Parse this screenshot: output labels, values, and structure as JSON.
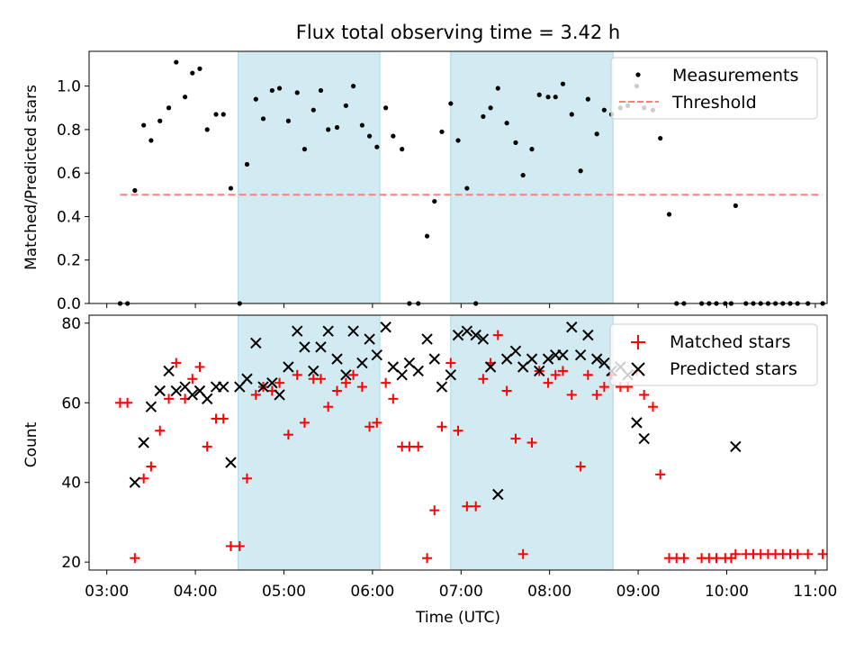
{
  "chart_data": [
    {
      "type": "scatter",
      "title": "Flux total observing time = 3.42 h",
      "xlabel": "",
      "ylabel": "Matched/Predicted stars",
      "ylim": [
        0,
        1.16
      ],
      "xlim": [
        "02:48",
        "11:08"
      ],
      "yticks": [
        "0.0",
        "0.2",
        "0.4",
        "0.6",
        "0.8",
        "1.0"
      ],
      "grid": false,
      "legend_position": "top-right",
      "shaded_intervals": [
        [
          "04:29",
          "06:05"
        ],
        [
          "06:53",
          "08:43"
        ]
      ],
      "shade_color": "#add8e6",
      "series": [
        {
          "name": "Measurements",
          "marker": "dot",
          "color": "#000000",
          "points": [
            [
              "03:09",
              0.0
            ],
            [
              "03:14",
              0.0
            ],
            [
              "03:19",
              0.52
            ],
            [
              "03:25",
              0.82
            ],
            [
              "03:30",
              0.75
            ],
            [
              "03:36",
              0.84
            ],
            [
              "03:42",
              0.9
            ],
            [
              "03:47",
              1.11
            ],
            [
              "03:53",
              0.95
            ],
            [
              "03:58",
              1.06
            ],
            [
              "04:03",
              1.08
            ],
            [
              "04:08",
              0.8
            ],
            [
              "04:14",
              0.87
            ],
            [
              "04:19",
              0.87
            ],
            [
              "04:24",
              0.53
            ],
            [
              "04:30",
              0.0
            ],
            [
              "04:35",
              0.64
            ],
            [
              "04:41",
              0.94
            ],
            [
              "04:46",
              0.85
            ],
            [
              "04:52",
              0.98
            ],
            [
              "04:57",
              0.99
            ],
            [
              "05:03",
              0.84
            ],
            [
              "05:09",
              0.97
            ],
            [
              "05:14",
              0.71
            ],
            [
              "05:20",
              0.89
            ],
            [
              "05:25",
              0.98
            ],
            [
              "05:30",
              0.8
            ],
            [
              "05:36",
              0.81
            ],
            [
              "05:42",
              0.91
            ],
            [
              "05:47",
              1.0
            ],
            [
              "05:53",
              0.82
            ],
            [
              "05:58",
              0.77
            ],
            [
              "06:03",
              0.72
            ],
            [
              "06:09",
              0.9
            ],
            [
              "06:14",
              0.77
            ],
            [
              "06:20",
              0.71
            ],
            [
              "06:25",
              0.0
            ],
            [
              "06:31",
              0.0
            ],
            [
              "06:37",
              0.31
            ],
            [
              "06:42",
              0.47
            ],
            [
              "06:47",
              0.79
            ],
            [
              "06:53",
              0.92
            ],
            [
              "06:58",
              0.75
            ],
            [
              "07:04",
              0.53
            ],
            [
              "07:10",
              0.0
            ],
            [
              "07:15",
              0.86
            ],
            [
              "07:20",
              0.9
            ],
            [
              "07:25",
              0.99
            ],
            [
              "07:31",
              0.83
            ],
            [
              "07:37",
              0.74
            ],
            [
              "07:42",
              0.59
            ],
            [
              "07:48",
              0.71
            ],
            [
              "07:53",
              0.96
            ],
            [
              "07:59",
              0.95
            ],
            [
              "08:04",
              0.95
            ],
            [
              "08:09",
              1.01
            ],
            [
              "08:15",
              0.87
            ],
            [
              "08:21",
              0.61
            ],
            [
              "08:26",
              0.94
            ],
            [
              "08:32",
              0.78
            ],
            [
              "08:37",
              0.89
            ],
            [
              "08:42",
              0.87
            ],
            [
              "08:48",
              0.9
            ],
            [
              "08:53",
              0.91
            ],
            [
              "08:59",
              1.0
            ],
            [
              "09:04",
              0.9
            ],
            [
              "09:10",
              0.89
            ],
            [
              "09:15",
              0.76
            ],
            [
              "09:21",
              0.41
            ],
            [
              "09:26",
              0.0
            ],
            [
              "09:31",
              0.0
            ],
            [
              "09:43",
              0.0
            ],
            [
              "09:48",
              0.0
            ],
            [
              "09:53",
              0.0
            ],
            [
              "09:59",
              0.0
            ],
            [
              "10:03",
              0.0
            ],
            [
              "10:06",
              0.45
            ],
            [
              "10:13",
              0.0
            ],
            [
              "10:18",
              0.0
            ],
            [
              "10:23",
              0.0
            ],
            [
              "10:28",
              0.0
            ],
            [
              "10:33",
              0.0
            ],
            [
              "10:38",
              0.0
            ],
            [
              "10:43",
              0.0
            ],
            [
              "10:48",
              0.0
            ],
            [
              "10:55",
              0.0
            ],
            [
              "11:05",
              0.0
            ]
          ]
        },
        {
          "name": "Threshold",
          "marker": "dashed-line",
          "color": "#ff7f7f",
          "points": [
            [
              "03:09",
              0.5
            ],
            [
              "11:05",
              0.5
            ]
          ]
        }
      ]
    },
    {
      "type": "scatter",
      "title": "",
      "xlabel": "Time (UTC)",
      "ylabel": "Count",
      "ylim": [
        18,
        82
      ],
      "xlim": [
        "02:48",
        "11:08"
      ],
      "yticks": [
        "20",
        "40",
        "60",
        "80"
      ],
      "xticks": [
        "03:00",
        "04:00",
        "05:00",
        "06:00",
        "07:00",
        "08:00",
        "09:00",
        "10:00",
        "11:00"
      ],
      "grid": false,
      "legend_position": "top-right",
      "shaded_intervals": [
        [
          "04:29",
          "06:05"
        ],
        [
          "06:53",
          "08:43"
        ]
      ],
      "shade_color": "#add8e6",
      "series": [
        {
          "name": "Matched stars",
          "marker": "plus",
          "color": "#ff0000",
          "points": [
            [
              "03:09",
              60
            ],
            [
              "03:14",
              60
            ],
            [
              "03:19",
              21
            ],
            [
              "03:25",
              41
            ],
            [
              "03:30",
              44
            ],
            [
              "03:36",
              53
            ],
            [
              "03:42",
              61
            ],
            [
              "03:47",
              70
            ],
            [
              "03:53",
              61
            ],
            [
              "03:58",
              66
            ],
            [
              "04:03",
              69
            ],
            [
              "04:08",
              49
            ],
            [
              "04:14",
              56
            ],
            [
              "04:19",
              56
            ],
            [
              "04:24",
              24
            ],
            [
              "04:30",
              24
            ],
            [
              "04:35",
              41
            ],
            [
              "04:41",
              62
            ],
            [
              "04:46",
              64
            ],
            [
              "04:52",
              63
            ],
            [
              "04:57",
              65
            ],
            [
              "05:03",
              52
            ],
            [
              "05:09",
              67
            ],
            [
              "05:14",
              55
            ],
            [
              "05:20",
              66
            ],
            [
              "05:25",
              66
            ],
            [
              "05:30",
              59
            ],
            [
              "05:36",
              63
            ],
            [
              "05:42",
              65
            ],
            [
              "05:47",
              67
            ],
            [
              "05:53",
              64
            ],
            [
              "05:58",
              54
            ],
            [
              "06:03",
              55
            ],
            [
              "06:09",
              65
            ],
            [
              "06:14",
              61
            ],
            [
              "06:20",
              49
            ],
            [
              "06:25",
              49
            ],
            [
              "06:31",
              49
            ],
            [
              "06:37",
              21
            ],
            [
              "06:42",
              33
            ],
            [
              "06:47",
              54
            ],
            [
              "06:53",
              70
            ],
            [
              "06:58",
              53
            ],
            [
              "07:04",
              34
            ],
            [
              "07:10",
              34
            ],
            [
              "07:15",
              66
            ],
            [
              "07:20",
              70
            ],
            [
              "07:25",
              77
            ],
            [
              "07:31",
              63
            ],
            [
              "07:37",
              51
            ],
            [
              "07:42",
              22
            ],
            [
              "07:48",
              50
            ],
            [
              "07:53",
              68
            ],
            [
              "07:59",
              65
            ],
            [
              "08:04",
              67
            ],
            [
              "08:09",
              68
            ],
            [
              "08:15",
              62
            ],
            [
              "08:21",
              44
            ],
            [
              "08:26",
              67
            ],
            [
              "08:32",
              62
            ],
            [
              "08:37",
              64
            ],
            [
              "08:42",
              67
            ],
            [
              "08:48",
              64
            ],
            [
              "08:53",
              64
            ],
            [
              "08:59",
              68
            ],
            [
              "09:04",
              62
            ],
            [
              "09:10",
              59
            ],
            [
              "09:15",
              42
            ],
            [
              "09:21",
              21
            ],
            [
              "09:26",
              21
            ],
            [
              "09:31",
              21
            ],
            [
              "09:43",
              21
            ],
            [
              "09:48",
              21
            ],
            [
              "09:53",
              21
            ],
            [
              "09:59",
              21
            ],
            [
              "10:03",
              21
            ],
            [
              "10:06",
              22
            ],
            [
              "10:13",
              22
            ],
            [
              "10:18",
              22
            ],
            [
              "10:23",
              22
            ],
            [
              "10:28",
              22
            ],
            [
              "10:33",
              22
            ],
            [
              "10:38",
              22
            ],
            [
              "10:43",
              22
            ],
            [
              "10:48",
              22
            ],
            [
              "10:55",
              22
            ],
            [
              "11:05",
              22
            ]
          ]
        },
        {
          "name": "Predicted stars",
          "marker": "x",
          "color": "#000000",
          "points": [
            [
              "03:19",
              40
            ],
            [
              "03:25",
              50
            ],
            [
              "03:30",
              59
            ],
            [
              "03:36",
              63
            ],
            [
              "03:42",
              68
            ],
            [
              "03:47",
              63
            ],
            [
              "03:53",
              64
            ],
            [
              "03:58",
              62
            ],
            [
              "04:03",
              63
            ],
            [
              "04:08",
              61
            ],
            [
              "04:14",
              64
            ],
            [
              "04:19",
              64
            ],
            [
              "04:24",
              45
            ],
            [
              "04:30",
              64
            ],
            [
              "04:35",
              66
            ],
            [
              "04:41",
              75
            ],
            [
              "04:46",
              64
            ],
            [
              "04:52",
              65
            ],
            [
              "04:57",
              62
            ],
            [
              "05:03",
              69
            ],
            [
              "05:09",
              78
            ],
            [
              "05:14",
              74
            ],
            [
              "05:20",
              68
            ],
            [
              "05:25",
              74
            ],
            [
              "05:30",
              78
            ],
            [
              "05:36",
              71
            ],
            [
              "05:42",
              67
            ],
            [
              "05:47",
              78
            ],
            [
              "05:53",
              70
            ],
            [
              "05:58",
              76
            ],
            [
              "06:03",
              72
            ],
            [
              "06:09",
              79
            ],
            [
              "06:14",
              69
            ],
            [
              "06:20",
              67
            ],
            [
              "06:25",
              70
            ],
            [
              "06:31",
              68
            ],
            [
              "06:37",
              76
            ],
            [
              "06:42",
              71
            ],
            [
              "06:47",
              64
            ],
            [
              "06:53",
              67
            ],
            [
              "06:58",
              77
            ],
            [
              "07:04",
              78
            ],
            [
              "07:10",
              77
            ],
            [
              "07:15",
              76
            ],
            [
              "07:20",
              69
            ],
            [
              "07:25",
              37
            ],
            [
              "07:31",
              71
            ],
            [
              "07:37",
              73
            ],
            [
              "07:42",
              69
            ],
            [
              "07:48",
              71
            ],
            [
              "07:53",
              68
            ],
            [
              "07:59",
              71
            ],
            [
              "08:04",
              72
            ],
            [
              "08:09",
              72
            ],
            [
              "08:15",
              79
            ],
            [
              "08:21",
              72
            ],
            [
              "08:26",
              77
            ],
            [
              "08:32",
              71
            ],
            [
              "08:37",
              70
            ],
            [
              "08:42",
              68
            ],
            [
              "08:48",
              69
            ],
            [
              "08:53",
              67
            ],
            [
              "08:59",
              55
            ],
            [
              "09:04",
              51
            ],
            [
              "10:06",
              49
            ]
          ]
        }
      ]
    }
  ]
}
